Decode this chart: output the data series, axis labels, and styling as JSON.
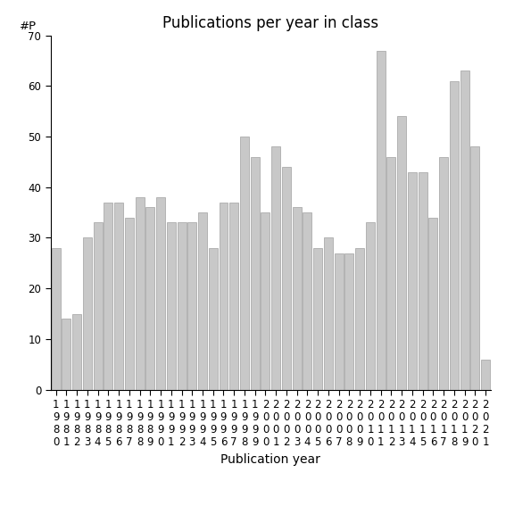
{
  "title": "Publications per year in class",
  "xlabel": "Publication year",
  "ylabel": "#P",
  "years": [
    1980,
    1981,
    1982,
    1983,
    1984,
    1985,
    1986,
    1987,
    1988,
    1989,
    1990,
    1991,
    1992,
    1993,
    1994,
    1995,
    1996,
    1997,
    1998,
    1999,
    2000,
    2001,
    2002,
    2003,
    2004,
    2005,
    2006,
    2007,
    2008,
    2009,
    2010,
    2011,
    2012,
    2013,
    2014,
    2015,
    2016,
    2017,
    2018,
    2019,
    2020,
    2021
  ],
  "values": [
    28,
    14,
    15,
    30,
    33,
    37,
    37,
    34,
    38,
    36,
    38,
    33,
    33,
    33,
    35,
    28,
    37,
    37,
    50,
    46,
    35,
    48,
    44,
    36,
    35,
    28,
    30,
    27,
    27,
    28,
    33,
    67,
    46,
    54,
    43,
    43,
    34,
    46,
    61,
    63,
    48,
    6
  ],
  "bar_color": "#c8c8c8",
  "bar_edgecolor": "#a0a0a0",
  "ylim": [
    0,
    70
  ],
  "yticks": [
    0,
    10,
    20,
    30,
    40,
    50,
    60,
    70
  ],
  "background_color": "#ffffff",
  "title_fontsize": 12,
  "label_fontsize": 10,
  "tick_fontsize": 8.5
}
